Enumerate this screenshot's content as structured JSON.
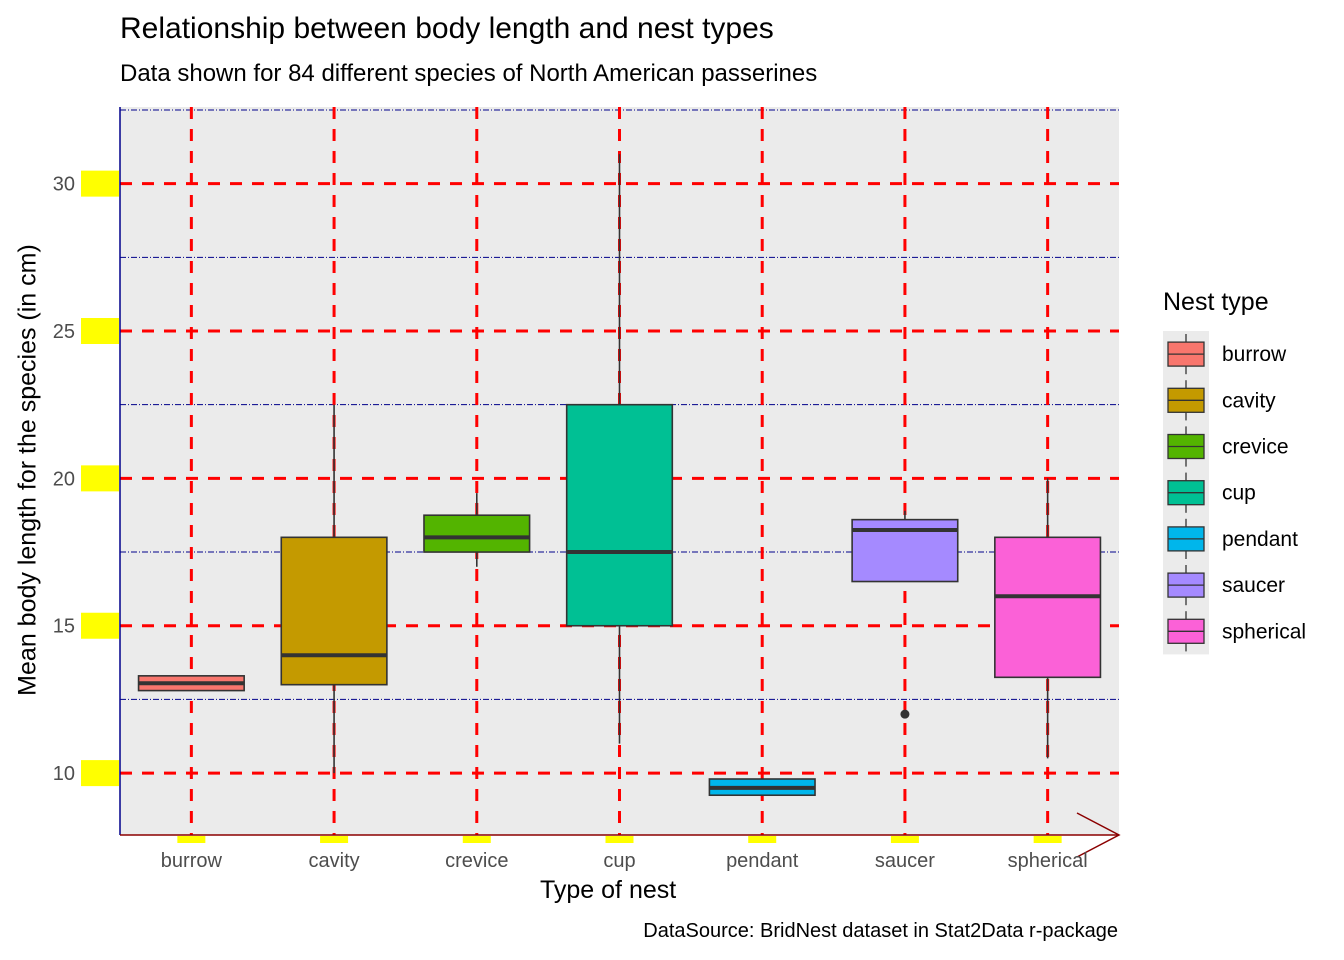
{
  "title": "Relationship between body length and nest types",
  "subtitle": "Data shown for 84 different species of North American passerines",
  "caption": "DataSource: BridNest dataset in Stat2Data r-package",
  "chart_data": {
    "type": "box",
    "xlabel": "Type of nest",
    "ylabel": "Mean body length for the species (in cm)",
    "ylim": [
      7.9,
      32.6
    ],
    "y_ticks": [
      10,
      15,
      20,
      25,
      30
    ],
    "categories": [
      "burrow",
      "cavity",
      "crevice",
      "cup",
      "pendant",
      "saucer",
      "spherical"
    ],
    "boxes": [
      {
        "category": "burrow",
        "whisker_low": 12.8,
        "q1": 12.8,
        "median": 13.05,
        "q3": 13.3,
        "whisker_high": 13.3,
        "outliers": [],
        "color": "#F8766D"
      },
      {
        "category": "cavity",
        "whisker_low": 10.0,
        "q1": 13.0,
        "median": 14.0,
        "q3": 18.0,
        "whisker_high": 22.5,
        "outliers": [],
        "color": "#C49A00"
      },
      {
        "category": "crevice",
        "whisker_low": 17.0,
        "q1": 17.5,
        "median": 18.0,
        "q3": 18.75,
        "whisker_high": 19.5,
        "outliers": [],
        "color": "#53B400"
      },
      {
        "category": "cup",
        "whisker_low": 11.0,
        "q1": 15.0,
        "median": 17.5,
        "q3": 22.5,
        "whisker_high": 31.0,
        "outliers": [],
        "color": "#00C094"
      },
      {
        "category": "pendant",
        "whisker_low": 9.25,
        "q1": 9.25,
        "median": 9.5,
        "q3": 9.8,
        "whisker_high": 9.8,
        "outliers": [],
        "color": "#00B6EB"
      },
      {
        "category": "saucer",
        "whisker_low": 16.5,
        "q1": 16.5,
        "median": 18.25,
        "q3": 18.6,
        "whisker_high": 18.9,
        "outliers": [
          12.0
        ],
        "color": "#A58AFF"
      },
      {
        "category": "spherical",
        "whisker_low": 10.5,
        "q1": 13.25,
        "median": 16.0,
        "q3": 18.0,
        "whisker_high": 20.0,
        "outliers": [],
        "color": "#FB61D7"
      }
    ],
    "legend": {
      "title": "Nest type",
      "position": "right",
      "items": [
        "burrow",
        "cavity",
        "crevice",
        "cup",
        "pendant",
        "saucer",
        "spherical"
      ]
    },
    "grid": true,
    "colors": {
      "panel_background": "#EBEBEB",
      "major_grid": "#FF0000",
      "minor_grid": "#00008B",
      "tick_highlight": "#FFFF00",
      "y_axis_line": "#00008B",
      "x_axis_line": "#8B0000"
    }
  }
}
